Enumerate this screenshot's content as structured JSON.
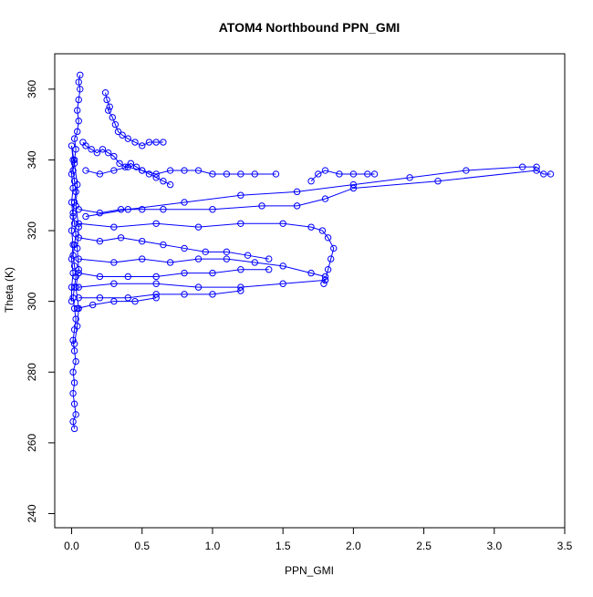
{
  "chart_data": {
    "type": "scatter",
    "title": "ATOM4 Northbound PPN_GMI",
    "xlabel": "PPN_GMI",
    "ylabel": "Theta (K)",
    "xlim": [
      -0.12,
      3.5
    ],
    "ylim": [
      236,
      370
    ],
    "x_ticks": [
      0.0,
      0.5,
      1.0,
      1.5,
      2.0,
      2.5,
      3.0,
      3.5
    ],
    "y_ticks": [
      240,
      260,
      280,
      300,
      320,
      340,
      360
    ],
    "x_tick_labels": [
      "0.0",
      "0.5",
      "1.0",
      "1.5",
      "2.0",
      "2.5",
      "3.0",
      "3.5"
    ],
    "y_tick_labels": [
      "240",
      "260",
      "280",
      "300",
      "320",
      "340",
      "360"
    ],
    "grid": false,
    "legend": "none",
    "marker": "open-circle",
    "connect_points": true,
    "color": "#0000ff",
    "series": [
      {
        "values": [
          [
            0.02,
            264
          ],
          [
            0.01,
            266
          ],
          [
            0.03,
            268
          ],
          [
            0.02,
            271
          ],
          [
            0.01,
            274
          ],
          [
            0.02,
            277
          ],
          [
            0.01,
            280
          ],
          [
            0.03,
            283
          ],
          [
            0.02,
            286
          ],
          [
            0.01,
            289
          ],
          [
            0.02,
            292
          ],
          [
            0.03,
            295
          ],
          [
            0.02,
            298
          ],
          [
            0.01,
            301
          ],
          [
            0.02,
            304
          ],
          [
            0.03,
            307
          ],
          [
            0.02,
            310
          ],
          [
            0.01,
            313
          ],
          [
            0.02,
            316
          ],
          [
            0.03,
            319
          ],
          [
            0.02,
            322
          ],
          [
            0.01,
            325
          ],
          [
            0.02,
            328
          ],
          [
            0.03,
            331
          ],
          [
            0.02,
            334
          ],
          [
            0.01,
            337
          ],
          [
            0.02,
            340
          ],
          [
            0.03,
            343
          ],
          [
            0.02,
            346
          ],
          [
            0.04,
            348
          ],
          [
            0.05,
            351
          ],
          [
            0.04,
            354
          ],
          [
            0.05,
            357
          ],
          [
            0.06,
            360
          ],
          [
            0.05,
            362
          ],
          [
            0.06,
            364
          ]
        ]
      },
      {
        "values": [
          [
            0.0,
            300
          ],
          [
            0.0,
            304
          ],
          [
            0.01,
            308
          ],
          [
            0.0,
            312
          ],
          [
            0.01,
            316
          ],
          [
            0.0,
            320
          ],
          [
            0.01,
            324
          ],
          [
            0.0,
            328
          ],
          [
            0.01,
            332
          ],
          [
            0.0,
            336
          ],
          [
            0.01,
            340
          ],
          [
            0.0,
            344
          ],
          [
            0.02,
            339
          ],
          [
            0.04,
            333
          ],
          [
            0.03,
            327
          ],
          [
            0.05,
            321
          ],
          [
            0.04,
            315
          ],
          [
            0.05,
            309
          ],
          [
            0.03,
            304
          ],
          [
            0.05,
            298
          ],
          [
            0.04,
            293
          ],
          [
            0.02,
            288
          ]
        ]
      },
      {
        "values": [
          [
            0.08,
            345
          ],
          [
            0.1,
            344
          ],
          [
            0.14,
            343
          ],
          [
            0.18,
            342
          ],
          [
            0.22,
            343
          ],
          [
            0.26,
            342
          ],
          [
            0.3,
            341
          ],
          [
            0.34,
            339
          ],
          [
            0.38,
            338
          ],
          [
            0.42,
            339
          ],
          [
            0.46,
            338
          ],
          [
            0.5,
            337
          ],
          [
            0.55,
            336
          ],
          [
            0.6,
            335
          ],
          [
            0.65,
            334
          ],
          [
            0.7,
            333
          ]
        ]
      },
      {
        "values": [
          [
            0.24,
            359
          ],
          [
            0.25,
            357
          ],
          [
            0.27,
            355
          ],
          [
            0.26,
            354
          ],
          [
            0.29,
            352
          ],
          [
            0.31,
            350
          ],
          [
            0.33,
            348
          ],
          [
            0.36,
            347
          ],
          [
            0.4,
            346
          ],
          [
            0.45,
            345
          ],
          [
            0.5,
            344
          ],
          [
            0.55,
            345
          ],
          [
            0.6,
            345
          ],
          [
            0.65,
            345
          ]
        ]
      },
      {
        "values": [
          [
            0.1,
            337
          ],
          [
            0.2,
            336
          ],
          [
            0.3,
            337
          ],
          [
            0.4,
            338
          ],
          [
            0.5,
            337
          ],
          [
            0.6,
            336
          ],
          [
            0.7,
            337
          ],
          [
            0.8,
            337
          ],
          [
            0.9,
            337
          ],
          [
            1.0,
            336
          ],
          [
            1.1,
            336
          ],
          [
            1.2,
            336
          ],
          [
            1.3,
            336
          ],
          [
            1.45,
            336
          ]
        ]
      },
      {
        "values": [
          [
            0.05,
            326
          ],
          [
            0.2,
            325
          ],
          [
            0.35,
            326
          ],
          [
            0.5,
            326
          ],
          [
            0.65,
            326
          ],
          [
            1.0,
            326
          ],
          [
            1.35,
            327
          ],
          [
            1.6,
            327
          ],
          [
            1.8,
            329
          ],
          [
            2.0,
            332
          ],
          [
            2.6,
            334
          ],
          [
            3.3,
            337
          ],
          [
            3.35,
            336
          ],
          [
            3.4,
            336
          ]
        ]
      },
      {
        "values": [
          [
            0.1,
            324
          ],
          [
            0.4,
            326
          ],
          [
            0.8,
            328
          ],
          [
            1.2,
            330
          ],
          [
            1.6,
            331
          ],
          [
            2.0,
            333
          ],
          [
            2.4,
            335
          ],
          [
            2.8,
            337
          ],
          [
            3.2,
            338
          ],
          [
            3.3,
            338
          ]
        ]
      },
      {
        "values": [
          [
            1.7,
            334
          ],
          [
            1.75,
            336
          ],
          [
            1.8,
            337
          ],
          [
            1.9,
            336
          ],
          [
            2.0,
            336
          ],
          [
            2.1,
            336
          ],
          [
            2.15,
            336
          ]
        ]
      },
      {
        "values": [
          [
            0.05,
            322
          ],
          [
            0.3,
            321
          ],
          [
            0.6,
            322
          ],
          [
            0.9,
            321
          ],
          [
            1.2,
            322
          ],
          [
            1.5,
            322
          ],
          [
            1.7,
            321
          ],
          [
            1.78,
            320
          ],
          [
            1.82,
            318
          ],
          [
            1.86,
            315
          ],
          [
            1.84,
            312
          ],
          [
            1.82,
            309
          ],
          [
            1.8,
            306
          ],
          [
            1.79,
            305
          ]
        ]
      },
      {
        "values": [
          [
            0.05,
            318
          ],
          [
            0.2,
            317
          ],
          [
            0.35,
            318
          ],
          [
            0.5,
            317
          ],
          [
            0.65,
            316
          ],
          [
            0.8,
            315
          ],
          [
            0.95,
            314
          ],
          [
            1.1,
            314
          ],
          [
            1.25,
            313
          ],
          [
            1.4,
            312
          ]
        ]
      },
      {
        "values": [
          [
            0.05,
            312
          ],
          [
            0.3,
            311
          ],
          [
            0.5,
            312
          ],
          [
            0.7,
            311
          ],
          [
            0.9,
            312
          ],
          [
            1.1,
            312
          ],
          [
            1.3,
            311
          ],
          [
            1.5,
            310
          ],
          [
            1.7,
            308
          ],
          [
            1.8,
            307
          ]
        ]
      },
      {
        "values": [
          [
            0.05,
            308
          ],
          [
            0.2,
            307
          ],
          [
            0.4,
            307
          ],
          [
            0.6,
            307
          ],
          [
            0.8,
            308
          ],
          [
            1.0,
            308
          ],
          [
            1.2,
            309
          ],
          [
            1.4,
            309
          ]
        ]
      },
      {
        "values": [
          [
            0.05,
            304
          ],
          [
            0.3,
            305
          ],
          [
            0.6,
            305
          ],
          [
            0.9,
            304
          ],
          [
            1.2,
            304
          ],
          [
            1.5,
            305
          ],
          [
            1.8,
            306
          ]
        ]
      },
      {
        "values": [
          [
            0.05,
            301
          ],
          [
            0.2,
            301
          ],
          [
            0.4,
            301
          ],
          [
            0.6,
            302
          ],
          [
            0.8,
            302
          ],
          [
            1.0,
            302
          ],
          [
            1.2,
            303
          ]
        ]
      },
      {
        "values": [
          [
            0.04,
            298
          ],
          [
            0.15,
            299
          ],
          [
            0.3,
            300
          ],
          [
            0.45,
            300
          ],
          [
            0.6,
            301
          ]
        ]
      }
    ]
  }
}
